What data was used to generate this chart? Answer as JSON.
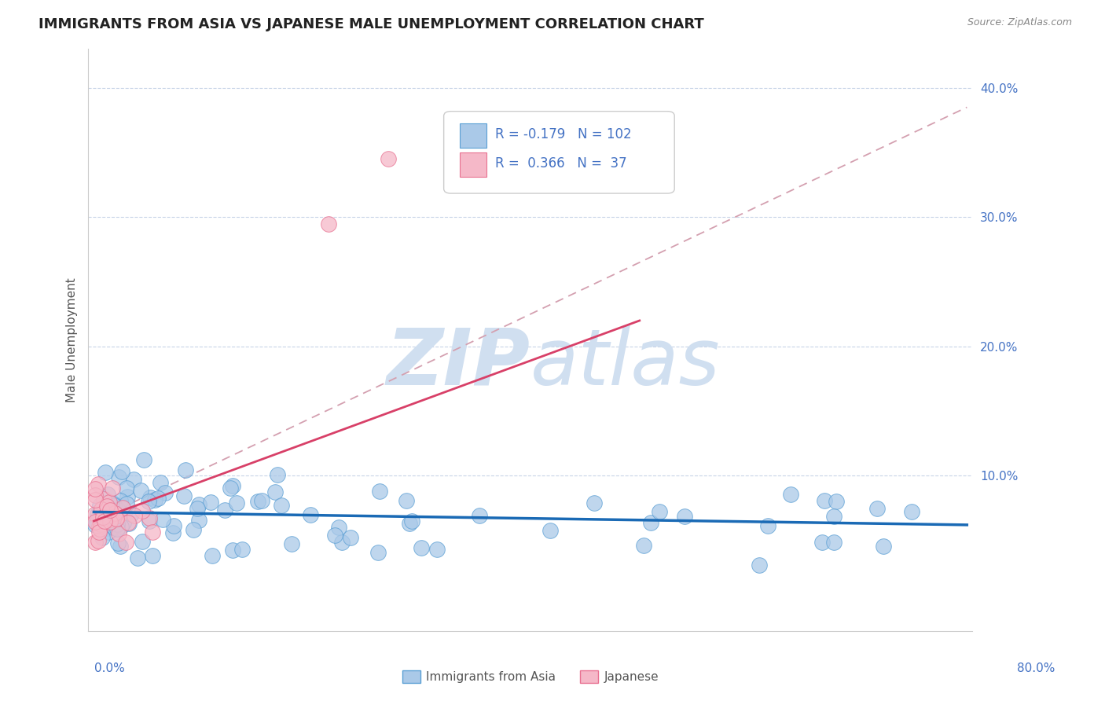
{
  "title": "IMMIGRANTS FROM ASIA VS JAPANESE MALE UNEMPLOYMENT CORRELATION CHART",
  "source_text": "Source: ZipAtlas.com",
  "ylabel": "Male Unemployment",
  "xlim": [
    0.0,
    0.8
  ],
  "ylim": [
    0.0,
    0.42
  ],
  "ytick_vals": [
    0.1,
    0.2,
    0.3,
    0.4
  ],
  "ytick_labels": [
    "10.0%",
    "20.0%",
    "30.0%",
    "40.0%"
  ],
  "blue_R": "-0.179",
  "blue_N": "102",
  "pink_R": "0.366",
  "pink_N": "37",
  "blue_color": "#aac9e8",
  "blue_edge_color": "#5a9fd4",
  "blue_line_color": "#1a6ab5",
  "pink_color": "#f5b8c8",
  "pink_edge_color": "#e87090",
  "pink_line_color": "#d84068",
  "dash_line_color": "#d4a0b0",
  "legend_text_color": "#4472c4",
  "watermark_color": "#d0dff0",
  "background_color": "#ffffff",
  "title_fontsize": 13,
  "source_fontsize": 9,
  "axis_label_fontsize": 11,
  "legend_fontsize": 12,
  "blue_trend_start_y": 0.072,
  "blue_trend_end_y": 0.062,
  "pink_trend_start_y": 0.065,
  "pink_trend_end_x": 0.5,
  "pink_trend_end_y": 0.22,
  "dash_trend_start_y": 0.065,
  "dash_trend_end_y": 0.385
}
